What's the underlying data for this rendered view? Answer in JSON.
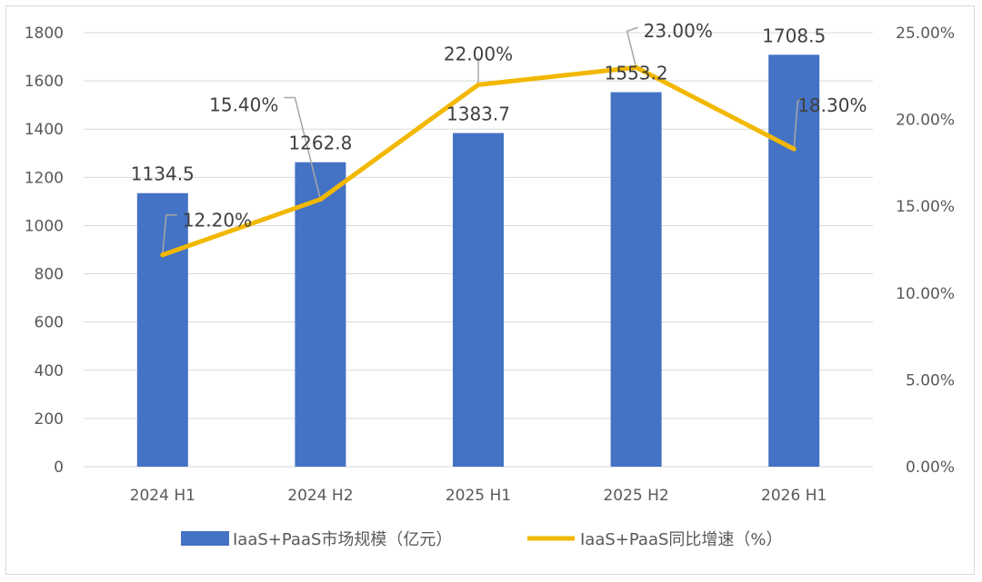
{
  "chart_data": {
    "type": "bar",
    "categories": [
      "2024 H1",
      "2024 H2",
      "2025 H1",
      "2025 H2",
      "2026 H1"
    ],
    "series": [
      {
        "name": "IaaS+PaaS市场规模（亿元）",
        "type": "bar",
        "axis": "left",
        "values": [
          1134.5,
          1262.8,
          1383.7,
          1553.2,
          1708.5
        ],
        "labels": [
          "1134.5",
          "1262.8",
          "1383.7",
          "1553.2",
          "1708.5"
        ],
        "color": "#4472C4"
      },
      {
        "name": "IaaS+PaaS同比增速（%）",
        "type": "line",
        "axis": "right",
        "values": [
          12.2,
          15.4,
          22.0,
          23.0,
          18.3
        ],
        "labels": [
          "12.20%",
          "15.40%",
          "22.00%",
          "23.00%",
          "18.30%"
        ],
        "color": "#F2B800"
      }
    ],
    "y_left": {
      "range": [
        0,
        1800
      ],
      "ticks": [
        "0",
        "200",
        "400",
        "600",
        "800",
        "1000",
        "1200",
        "1400",
        "1600",
        "1800"
      ]
    },
    "y_right": {
      "range": [
        0,
        25
      ],
      "ticks": [
        "0.00%",
        "5.00%",
        "10.00%",
        "15.00%",
        "20.00%",
        "25.00%"
      ]
    },
    "grid": true,
    "legend_position": "bottom"
  }
}
